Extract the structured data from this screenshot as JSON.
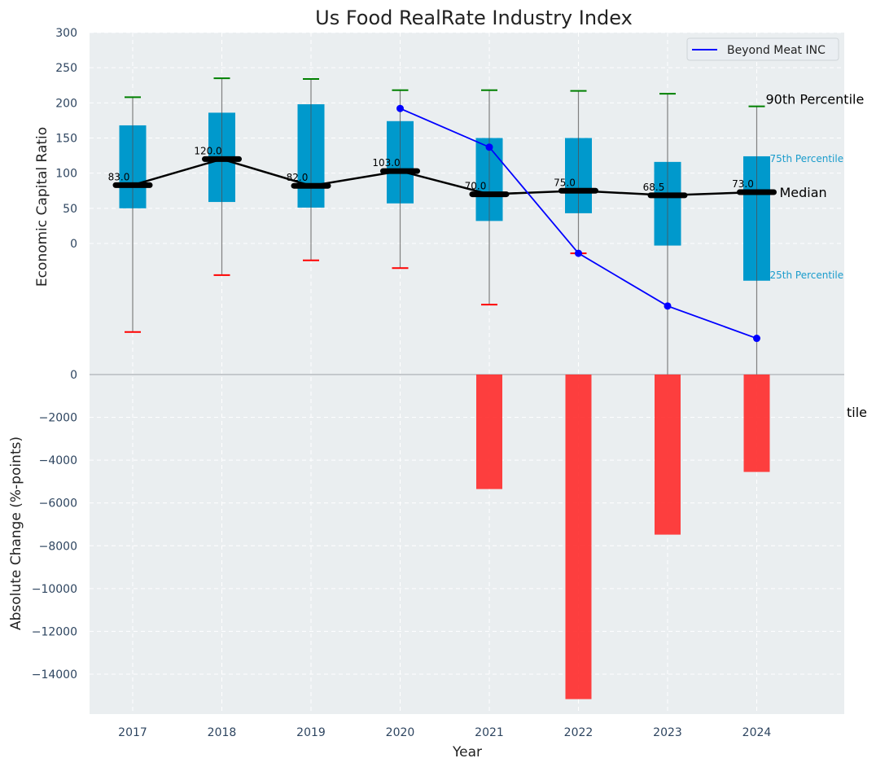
{
  "chart_data": {
    "type": "box+line+bar",
    "title": "Us Food RealRate Industry Index",
    "xlabel": "Year",
    "categories": [
      "2017",
      "2018",
      "2019",
      "2020",
      "2021",
      "2022",
      "2023",
      "2024"
    ],
    "top_panel": {
      "ylabel": "Economic Capital Ratio",
      "ylim": [
        -185,
        300
      ],
      "yticks": [
        0,
        50,
        100,
        150,
        200,
        250,
        300
      ],
      "grid": true,
      "percentiles": {
        "p10": [
          -126,
          -45,
          -24,
          -35,
          -87,
          -14,
          null,
          null
        ],
        "p25": [
          50,
          59,
          51,
          57,
          32,
          43,
          -3,
          -53
        ],
        "median": [
          83,
          120,
          82,
          103,
          70,
          75,
          68.5,
          73
        ],
        "p75": [
          168,
          186,
          198,
          174,
          150,
          150,
          116,
          124
        ],
        "p90": [
          208,
          235,
          234,
          218,
          218,
          217,
          213,
          195
        ]
      },
      "median_labels": [
        "83.0",
        "120.0",
        "82.0",
        "103.0",
        "70.0",
        "75.0",
        "68.5",
        "73.0"
      ],
      "series": [
        {
          "name": "Beyond Meat INC",
          "color": "#0000ff",
          "values": [
            null,
            null,
            null,
            192,
            137,
            -14,
            -89,
            -135
          ]
        }
      ],
      "annotations": {
        "p90": "90th Percentile",
        "p75": "75th Percentile",
        "median": "Median",
        "p25": "25th Percentile",
        "p10_clipped": "tile"
      },
      "legend": {
        "position": "top-right",
        "entries": [
          "Beyond Meat INC"
        ]
      }
    },
    "bottom_panel": {
      "type": "bar",
      "ylabel": "Absolute Change (%-points)",
      "ylim": [
        -15860,
        0
      ],
      "yticks": [
        0,
        -2000,
        -4000,
        -6000,
        -8000,
        -10000,
        -12000,
        -14000
      ],
      "values": [
        null,
        null,
        null,
        null,
        -5350,
        -15165,
        -7480,
        -4550
      ],
      "color": "#ff2a2a",
      "grid": true
    },
    "colors": {
      "box": "#0099cc",
      "median_line": "#000000",
      "p90_cap": "#008000",
      "p10_cap": "#ff0000",
      "whisker": "#808080",
      "plot_bg": "#eaeef0"
    }
  }
}
